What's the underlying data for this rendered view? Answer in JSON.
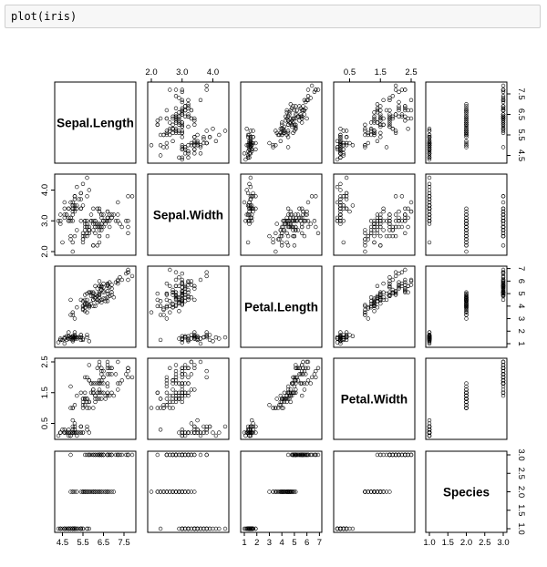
{
  "cell": {
    "code": "plot(iris)"
  },
  "chart_data": {
    "type": "scatter",
    "matrix": "pairs",
    "variables": [
      "Sepal.Length",
      "Sepal.Width",
      "Petal.Length",
      "Petal.Width",
      "Species"
    ],
    "ranges": [
      [
        4.3,
        7.9
      ],
      [
        2.0,
        4.4
      ],
      [
        1.0,
        6.9
      ],
      [
        0.1,
        2.5
      ],
      [
        1.0,
        3.0
      ]
    ],
    "ticks": [
      [
        "4.5",
        "5.5",
        "6.5",
        "7.5"
      ],
      [
        "2.0",
        "3.0",
        "4.0"
      ],
      [
        "1",
        "2",
        "3",
        "4",
        "5",
        "6",
        "7"
      ],
      [
        "0.5",
        "1.5",
        "2.5"
      ],
      [
        "1.0",
        "1.5",
        "2.0",
        "2.5",
        "3.0"
      ]
    ],
    "tick_values": [
      [
        4.5,
        5.5,
        6.5,
        7.5
      ],
      [
        2.0,
        3.0,
        4.0
      ],
      [
        1,
        2,
        3,
        4,
        5,
        6,
        7
      ],
      [
        0.5,
        1.5,
        2.5
      ],
      [
        1.0,
        1.5,
        2.0,
        2.5,
        3.0
      ]
    ],
    "Sepal.Length": [
      5.1,
      4.9,
      4.7,
      4.6,
      5.0,
      5.4,
      4.6,
      5.0,
      4.4,
      4.9,
      5.4,
      4.8,
      4.8,
      4.3,
      5.8,
      5.7,
      5.4,
      5.1,
      5.7,
      5.1,
      5.4,
      5.1,
      4.6,
      5.1,
      4.8,
      5.0,
      5.0,
      5.2,
      5.2,
      4.7,
      4.8,
      5.4,
      5.2,
      5.5,
      4.9,
      5.0,
      5.5,
      4.9,
      4.4,
      5.1,
      5.0,
      4.5,
      4.4,
      5.0,
      5.1,
      4.8,
      5.1,
      4.6,
      5.3,
      5.0,
      7.0,
      6.4,
      6.9,
      5.5,
      6.5,
      5.7,
      6.3,
      4.9,
      6.6,
      5.2,
      5.0,
      5.9,
      6.0,
      6.1,
      5.6,
      6.7,
      5.6,
      5.8,
      6.2,
      5.6,
      5.9,
      6.1,
      6.3,
      6.1,
      6.4,
      6.6,
      6.8,
      6.7,
      6.0,
      5.7,
      5.5,
      5.5,
      5.8,
      6.0,
      5.4,
      6.0,
      6.7,
      6.3,
      5.6,
      5.5,
      5.5,
      6.1,
      5.8,
      5.0,
      5.6,
      5.7,
      5.7,
      6.2,
      5.1,
      5.7,
      6.3,
      5.8,
      7.1,
      6.3,
      6.5,
      7.6,
      4.9,
      7.3,
      6.7,
      7.2,
      6.5,
      6.4,
      6.8,
      5.7,
      5.8,
      6.4,
      6.5,
      7.7,
      7.7,
      6.0,
      6.9,
      5.6,
      7.7,
      6.3,
      6.7,
      7.2,
      6.2,
      6.1,
      6.4,
      7.2,
      7.4,
      7.9,
      6.4,
      6.3,
      6.1,
      7.7,
      6.3,
      6.4,
      6.0,
      6.9,
      6.7,
      6.9,
      5.8,
      6.8,
      6.7,
      6.7,
      6.3,
      6.5,
      6.2,
      5.9
    ],
    "Sepal.Width": [
      3.5,
      3.0,
      3.2,
      3.1,
      3.6,
      3.9,
      3.4,
      3.4,
      2.9,
      3.1,
      3.7,
      3.4,
      3.0,
      3.0,
      4.0,
      4.4,
      3.9,
      3.5,
      3.8,
      3.8,
      3.4,
      3.7,
      3.6,
      3.3,
      3.4,
      3.0,
      3.4,
      3.5,
      3.4,
      3.2,
      3.1,
      3.4,
      4.1,
      4.2,
      3.1,
      3.2,
      3.5,
      3.6,
      3.0,
      3.4,
      3.5,
      2.3,
      3.2,
      3.5,
      3.8,
      3.0,
      3.8,
      3.2,
      3.7,
      3.3,
      3.2,
      3.2,
      3.1,
      2.3,
      2.8,
      2.8,
      3.3,
      2.4,
      2.9,
      2.7,
      2.0,
      3.0,
      2.2,
      2.9,
      2.9,
      3.1,
      3.0,
      2.7,
      2.2,
      2.5,
      3.2,
      2.8,
      2.5,
      2.8,
      2.9,
      3.0,
      2.8,
      3.0,
      2.9,
      2.6,
      2.4,
      2.4,
      2.7,
      2.7,
      3.0,
      3.4,
      3.1,
      2.3,
      3.0,
      2.5,
      2.6,
      3.0,
      2.6,
      2.3,
      2.7,
      3.0,
      2.9,
      2.9,
      2.5,
      2.8,
      3.3,
      2.7,
      3.0,
      2.9,
      3.0,
      3.0,
      2.5,
      2.9,
      2.5,
      3.6,
      3.2,
      2.7,
      3.0,
      2.5,
      2.8,
      3.2,
      3.0,
      3.8,
      2.6,
      2.2,
      3.2,
      2.8,
      2.8,
      2.7,
      3.3,
      3.2,
      2.8,
      3.0,
      2.8,
      3.0,
      2.8,
      3.8,
      2.8,
      2.8,
      2.6,
      3.0,
      3.4,
      3.1,
      3.0,
      3.1,
      3.1,
      3.1,
      2.7,
      3.2,
      3.3,
      3.0,
      2.5,
      3.0,
      3.4,
      3.0
    ],
    "Petal.Length": [
      1.4,
      1.4,
      1.3,
      1.5,
      1.4,
      1.7,
      1.4,
      1.5,
      1.4,
      1.5,
      1.5,
      1.6,
      1.4,
      1.1,
      1.2,
      1.5,
      1.3,
      1.4,
      1.7,
      1.5,
      1.7,
      1.5,
      1.0,
      1.7,
      1.9,
      1.6,
      1.6,
      1.5,
      1.4,
      1.6,
      1.6,
      1.5,
      1.5,
      1.4,
      1.5,
      1.2,
      1.3,
      1.4,
      1.3,
      1.5,
      1.3,
      1.3,
      1.3,
      1.6,
      1.9,
      1.4,
      1.6,
      1.4,
      1.5,
      1.4,
      4.7,
      4.5,
      4.9,
      4.0,
      4.6,
      4.5,
      4.7,
      3.3,
      4.6,
      3.9,
      3.5,
      4.2,
      4.0,
      4.7,
      3.6,
      4.4,
      4.5,
      4.1,
      4.5,
      3.9,
      4.8,
      4.0,
      4.9,
      4.7,
      4.3,
      4.4,
      4.8,
      5.0,
      4.5,
      3.5,
      3.8,
      3.7,
      3.9,
      5.1,
      4.5,
      4.5,
      4.7,
      4.4,
      4.1,
      4.0,
      4.4,
      4.6,
      4.0,
      3.3,
      4.2,
      4.2,
      4.2,
      4.3,
      3.0,
      4.1,
      6.0,
      5.1,
      5.9,
      5.6,
      5.8,
      6.6,
      4.5,
      6.3,
      5.8,
      6.1,
      5.1,
      5.3,
      5.5,
      5.0,
      5.1,
      5.3,
      5.5,
      6.7,
      6.9,
      5.0,
      5.7,
      4.9,
      6.7,
      4.9,
      5.7,
      6.0,
      4.8,
      4.9,
      5.6,
      5.8,
      6.1,
      6.4,
      5.6,
      5.1,
      5.6,
      6.1,
      5.6,
      5.5,
      4.8,
      5.4,
      5.6,
      5.1,
      5.1,
      5.9,
      5.7,
      5.2,
      5.0,
      5.2,
      5.4,
      5.1
    ],
    "Petal.Width": [
      0.2,
      0.2,
      0.2,
      0.2,
      0.2,
      0.4,
      0.3,
      0.2,
      0.2,
      0.1,
      0.2,
      0.2,
      0.1,
      0.1,
      0.2,
      0.4,
      0.4,
      0.3,
      0.3,
      0.3,
      0.2,
      0.4,
      0.2,
      0.5,
      0.2,
      0.2,
      0.4,
      0.2,
      0.2,
      0.2,
      0.2,
      0.4,
      0.1,
      0.2,
      0.2,
      0.2,
      0.2,
      0.1,
      0.2,
      0.2,
      0.3,
      0.3,
      0.2,
      0.6,
      0.4,
      0.3,
      0.2,
      0.2,
      0.2,
      0.2,
      1.4,
      1.5,
      1.5,
      1.3,
      1.5,
      1.3,
      1.6,
      1.0,
      1.3,
      1.4,
      1.0,
      1.5,
      1.0,
      1.4,
      1.3,
      1.4,
      1.5,
      1.0,
      1.5,
      1.1,
      1.8,
      1.3,
      1.5,
      1.2,
      1.3,
      1.4,
      1.4,
      1.7,
      1.5,
      1.0,
      1.1,
      1.0,
      1.2,
      1.6,
      1.5,
      1.6,
      1.5,
      1.3,
      1.3,
      1.3,
      1.2,
      1.4,
      1.2,
      1.0,
      1.3,
      1.2,
      1.3,
      1.3,
      1.1,
      1.3,
      2.5,
      1.9,
      2.1,
      1.8,
      2.2,
      2.1,
      1.7,
      1.8,
      1.8,
      2.5,
      2.0,
      1.9,
      2.1,
      2.0,
      2.4,
      2.3,
      1.8,
      2.2,
      2.3,
      1.5,
      2.3,
      2.0,
      2.0,
      1.8,
      2.1,
      1.8,
      1.8,
      1.8,
      2.1,
      1.6,
      1.9,
      2.0,
      2.2,
      1.5,
      1.4,
      2.3,
      2.4,
      1.8,
      1.8,
      2.1,
      2.4,
      2.3,
      1.9,
      2.3,
      2.5,
      2.3,
      1.9,
      2.0,
      2.3,
      1.8
    ],
    "Species": [
      1,
      1,
      1,
      1,
      1,
      1,
      1,
      1,
      1,
      1,
      1,
      1,
      1,
      1,
      1,
      1,
      1,
      1,
      1,
      1,
      1,
      1,
      1,
      1,
      1,
      1,
      1,
      1,
      1,
      1,
      1,
      1,
      1,
      1,
      1,
      1,
      1,
      1,
      1,
      1,
      1,
      1,
      1,
      1,
      1,
      1,
      1,
      1,
      1,
      1,
      2,
      2,
      2,
      2,
      2,
      2,
      2,
      2,
      2,
      2,
      2,
      2,
      2,
      2,
      2,
      2,
      2,
      2,
      2,
      2,
      2,
      2,
      2,
      2,
      2,
      2,
      2,
      2,
      2,
      2,
      2,
      2,
      2,
      2,
      2,
      2,
      2,
      2,
      2,
      2,
      2,
      2,
      2,
      2,
      2,
      2,
      2,
      2,
      2,
      2,
      3,
      3,
      3,
      3,
      3,
      3,
      3,
      3,
      3,
      3,
      3,
      3,
      3,
      3,
      3,
      3,
      3,
      3,
      3,
      3,
      3,
      3,
      3,
      3,
      3,
      3,
      3,
      3,
      3,
      3,
      3,
      3,
      3,
      3,
      3,
      3,
      3,
      3,
      3,
      3,
      3,
      3,
      3,
      3,
      3,
      3,
      3,
      3,
      3,
      3
    ]
  }
}
